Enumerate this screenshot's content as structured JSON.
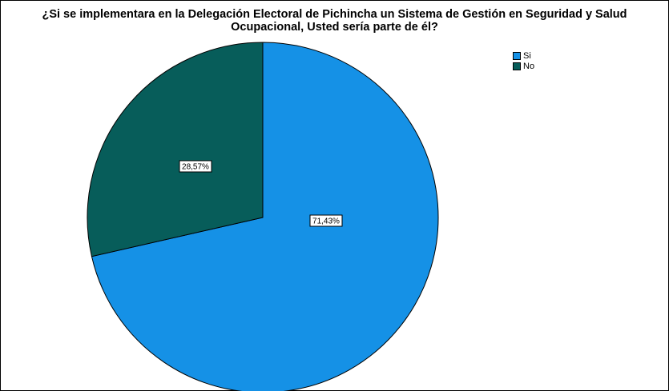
{
  "chart_data": {
    "type": "pie",
    "title_line1": "¿Si se implementara en la Delegación Electoral de Pichincha un Sistema de Gestión en Seguridad y Salud",
    "title_line2": "Ocupacional, Usted sería parte de él?",
    "slices": [
      {
        "label": "Si",
        "value": 71.43,
        "value_label": "71,43%",
        "color": "#1591E6"
      },
      {
        "label": "No",
        "value": 28.57,
        "value_label": "28,57%",
        "color": "#075D5A"
      }
    ],
    "legend_placement": "top-right"
  }
}
